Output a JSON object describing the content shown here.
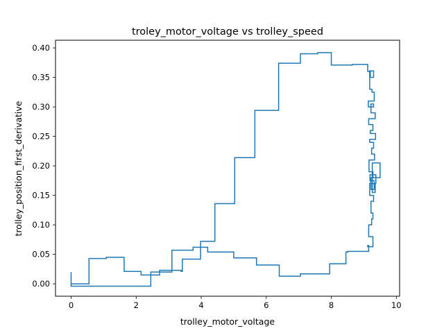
{
  "chart_data": {
    "type": "line",
    "title": "troley_motor_voltage vs trolley_speed",
    "xlabel": "trolley_motor_voltage",
    "ylabel": "trolley_position_first_derivative",
    "xlim": [
      -0.48,
      10.1
    ],
    "ylim": [
      -0.021,
      0.413
    ],
    "xticks": [
      0,
      2,
      4,
      6,
      8,
      10
    ],
    "xtick_labels": [
      "0",
      "2",
      "4",
      "6",
      "8",
      "10"
    ],
    "yticks": [
      0.0,
      0.05,
      0.1,
      0.15,
      0.2,
      0.25,
      0.3,
      0.35,
      0.4
    ],
    "ytick_labels": [
      "0.00",
      "0.05",
      "0.10",
      "0.15",
      "0.20",
      "0.25",
      "0.30",
      "0.35",
      "0.40"
    ],
    "grid": false,
    "line_color": "#1f77b4",
    "series": [
      {
        "drawstyle": "steps-post",
        "x": [
          0.0,
          0.0,
          0.0,
          0.0,
          0.55,
          1.08,
          1.63,
          2.15,
          2.72,
          3.38,
          3.42,
          3.98,
          4.42,
          5.03,
          5.65,
          6.38,
          7.05,
          7.58,
          8.0,
          8.65,
          9.12,
          9.2,
          9.3,
          9.18,
          9.25,
          9.32,
          9.14,
          9.3,
          9.22,
          9.35,
          9.15,
          9.28,
          9.2,
          9.36,
          9.18,
          9.3,
          9.24,
          9.33,
          9.16,
          9.28,
          9.21,
          9.37,
          9.19,
          9.32,
          9.22,
          9.5,
          9.5,
          9.26,
          9.35,
          9.18,
          9.3,
          9.22,
          9.28,
          9.24,
          9.15,
          9.28,
          9.12,
          9.15,
          8.5,
          8.45,
          7.95,
          7.05,
          6.4,
          5.7,
          5.0,
          4.2,
          3.75,
          3.1,
          3.1,
          2.45,
          2.45,
          0.0,
          0.0
        ],
        "y": [
          0.0,
          0.02,
          -0.004,
          0.0,
          0.043,
          0.045,
          0.021,
          0.015,
          0.023,
          0.021,
          0.042,
          0.072,
          0.136,
          0.214,
          0.294,
          0.374,
          0.39,
          0.392,
          0.371,
          0.372,
          0.36,
          0.35,
          0.361,
          0.33,
          0.325,
          0.31,
          0.3,
          0.305,
          0.29,
          0.28,
          0.27,
          0.26,
          0.255,
          0.245,
          0.24,
          0.23,
          0.22,
          0.21,
          0.19,
          0.18,
          0.17,
          0.185,
          0.175,
          0.16,
          0.18,
          0.18,
          0.205,
          0.155,
          0.17,
          0.15,
          0.14,
          0.12,
          0.11,
          0.1,
          0.08,
          0.063,
          0.065,
          0.055,
          0.054,
          0.034,
          0.017,
          0.013,
          0.032,
          0.044,
          0.054,
          0.062,
          0.057,
          0.044,
          0.02,
          0.002,
          -0.004,
          0.0,
          0.0
        ]
      }
    ]
  }
}
